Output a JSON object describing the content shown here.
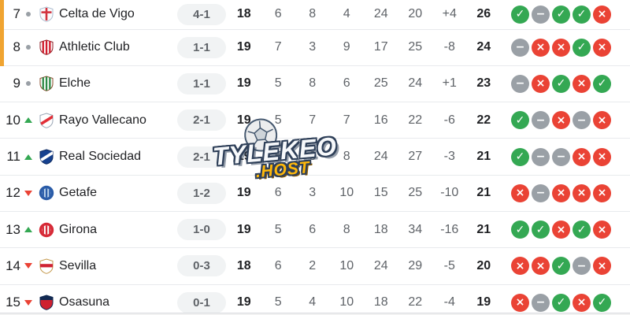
{
  "colors": {
    "accent-zone": "#F0A431",
    "win": "#34A853",
    "draw": "#9AA0A6",
    "loss": "#EA4335",
    "up": "#34A853",
    "down": "#EA4335",
    "dot": "#9AA0A6",
    "row-border": "#E8EAED",
    "badge-bg": "#F1F3F4",
    "badge-text": "#5F6368",
    "text-primary": "#202124",
    "text-secondary": "#5F6368"
  },
  "watermark": {
    "title": "TYLEKEO",
    "subtitle": ".HOST",
    "ball_icon": "soccer-ball-icon"
  },
  "table": {
    "zone_rows": [
      "7",
      "8"
    ],
    "form_glyphs": {
      "W": "✓",
      "D": "−",
      "L": "×"
    },
    "rows": [
      {
        "pos": "7",
        "trend": "same",
        "team": "Celta de Vigo",
        "result": "4-1",
        "mp": "18",
        "w": "6",
        "d": "8",
        "l": "4",
        "gf": "24",
        "ga": "20",
        "gd": "+4",
        "pts": "26",
        "form": [
          "W",
          "D",
          "W",
          "W",
          "L"
        ],
        "logo": {
          "shape": "shield",
          "motif": "cross",
          "c1": "#FBFCFD",
          "c2": "#D2333E",
          "c3": "#AEBDD0"
        }
      },
      {
        "pos": "8",
        "trend": "same",
        "team": "Athletic Club",
        "result": "1-1",
        "mp": "19",
        "w": "7",
        "d": "3",
        "l": "9",
        "gf": "17",
        "ga": "25",
        "gd": "-8",
        "pts": "24",
        "form": [
          "D",
          "L",
          "L",
          "W",
          "L"
        ],
        "logo": {
          "shape": "shield",
          "motif": "stripes",
          "c1": "#FFFFFF",
          "c2": "#D01C2C",
          "c3": "#8A1B22"
        }
      },
      {
        "pos": "9",
        "trend": "same",
        "team": "Elche",
        "result": "1-1",
        "mp": "19",
        "w": "5",
        "d": "8",
        "l": "6",
        "gf": "25",
        "ga": "24",
        "gd": "+1",
        "pts": "23",
        "form": [
          "D",
          "L",
          "W",
          "L",
          "W"
        ],
        "logo": {
          "shape": "shield",
          "motif": "stripes",
          "c1": "#FFFFFF",
          "c2": "#2D8A46",
          "c3": "#8A4A2A"
        }
      },
      {
        "pos": "10",
        "trend": "up",
        "team": "Rayo Vallecano",
        "result": "2-1",
        "mp": "19",
        "w": "5",
        "d": "7",
        "l": "7",
        "gf": "16",
        "ga": "22",
        "gd": "-6",
        "pts": "22",
        "form": [
          "W",
          "D",
          "L",
          "D",
          "L"
        ],
        "logo": {
          "shape": "shield",
          "motif": "diagonal",
          "c1": "#FFFFFF",
          "c2": "#E23038",
          "c3": "#9AA6B5"
        }
      },
      {
        "pos": "11",
        "trend": "up",
        "team": "Real Sociedad",
        "result": "2-1",
        "mp": "19",
        "w": "5",
        "d": "6",
        "l": "8",
        "gf": "24",
        "ga": "27",
        "gd": "-3",
        "pts": "21",
        "form": [
          "W",
          "D",
          "D",
          "L",
          "L"
        ],
        "logo": {
          "shape": "shield",
          "motif": "diagonal",
          "c1": "#16418F",
          "c2": "#FFFFFF",
          "c3": "#0D2A60"
        }
      },
      {
        "pos": "12",
        "trend": "down",
        "team": "Getafe",
        "result": "1-2",
        "mp": "19",
        "w": "6",
        "d": "3",
        "l": "10",
        "gf": "15",
        "ga": "25",
        "gd": "-10",
        "pts": "21",
        "form": [
          "L",
          "D",
          "L",
          "L",
          "L"
        ],
        "logo": {
          "shape": "circle",
          "motif": "stripes",
          "c1": "#2A5CA8",
          "c2": "#BCD3EA",
          "c3": "#2A5CA8"
        }
      },
      {
        "pos": "13",
        "trend": "up",
        "team": "Girona",
        "result": "1-0",
        "mp": "19",
        "w": "5",
        "d": "6",
        "l": "8",
        "gf": "18",
        "ga": "34",
        "gd": "-16",
        "pts": "21",
        "form": [
          "W",
          "W",
          "L",
          "W",
          "L"
        ],
        "logo": {
          "shape": "circle",
          "motif": "stripes",
          "c1": "#D62936",
          "c2": "#FFFFFF",
          "c3": "#D62936"
        }
      },
      {
        "pos": "14",
        "trend": "down",
        "team": "Sevilla",
        "result": "0-3",
        "mp": "18",
        "w": "6",
        "d": "2",
        "l": "10",
        "gf": "24",
        "ga": "29",
        "gd": "-5",
        "pts": "20",
        "form": [
          "L",
          "L",
          "W",
          "D",
          "L"
        ],
        "logo": {
          "shape": "shield",
          "motif": "band",
          "c1": "#FFFFFF",
          "c2": "#CF2233",
          "c3": "#C59A4E"
        }
      },
      {
        "pos": "15",
        "trend": "down",
        "team": "Osasuna",
        "result": "0-1",
        "mp": "19",
        "w": "5",
        "d": "4",
        "l": "10",
        "gf": "18",
        "ga": "22",
        "gd": "-4",
        "pts": "19",
        "form": [
          "L",
          "D",
          "W",
          "L",
          "W"
        ],
        "logo": {
          "shape": "shield",
          "motif": "chief",
          "c1": "#CF2130",
          "c2": "#122A52",
          "c3": "#122A52"
        }
      }
    ]
  }
}
